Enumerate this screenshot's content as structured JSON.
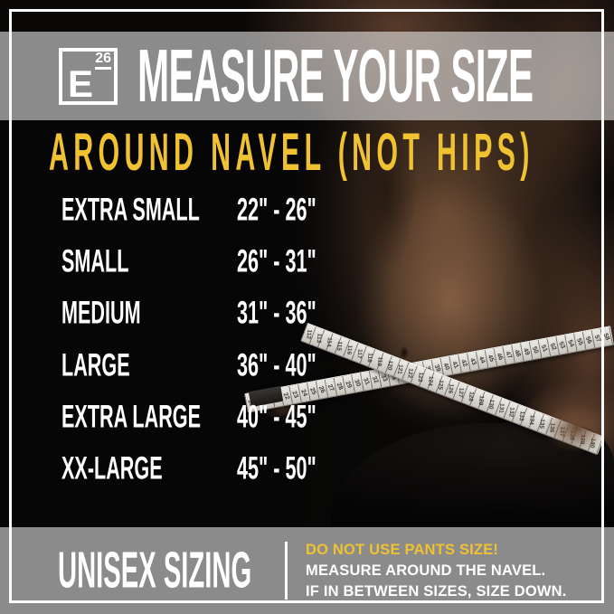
{
  "brand": {
    "logo_letter": "E",
    "logo_number": "26"
  },
  "header": {
    "title": "MEASURE YOUR SIZE"
  },
  "chart_data": {
    "type": "table",
    "title": "MEASURE YOUR SIZE",
    "subtitle": "AROUND NAVEL (NOT HIPS)",
    "rows": [
      {
        "size": "EXTRA SMALL",
        "range": "22\" - 26\""
      },
      {
        "size": "SMALL",
        "range": "26\" - 31\""
      },
      {
        "size": "MEDIUM",
        "range": "31\" - 36\""
      },
      {
        "size": "LARGE",
        "range": "36\" - 40\""
      },
      {
        "size": "EXTRA LARGE",
        "range": "40\" - 45\""
      },
      {
        "size": "XX-LARGE",
        "range": "45\" - 50\""
      }
    ]
  },
  "footer": {
    "left_label": "UNISEX SIZING",
    "note_warning": "DO NOT USE PANTS SIZE!",
    "note_line2": "MEASURE AROUND THE NAVEL.",
    "note_line3": "IF IN BETWEEN SIZES, SIZE DOWN."
  },
  "colors": {
    "accent_yellow": "#F0C231",
    "band_gray": "#8B8B8B",
    "text_white": "#FFFFFF",
    "background_black": "#090807",
    "tape_light": "#D9D6D0"
  },
  "background": {
    "alt": "dark photo of a bare torso with two measuring tapes crossed around the navel, black shorts below",
    "tape_a_numbers": [
      "18",
      "19",
      "20",
      "21",
      "22",
      "23",
      "24",
      "25",
      "26",
      "27",
      "28",
      "29",
      "30",
      "31",
      "32",
      "33",
      "34",
      "35",
      "36",
      "37",
      "38",
      "39",
      "40",
      "41",
      "42",
      "43",
      "44",
      "45",
      "46",
      "47",
      "48",
      "49",
      "50",
      "51",
      "52",
      "53",
      "54",
      "55",
      "56",
      "57",
      "58"
    ],
    "tape_b_numbers": [
      "112",
      "113",
      "114",
      "115",
      "116",
      "117",
      "118",
      "119",
      "120",
      "121",
      "122",
      "123",
      "124",
      "125",
      "126",
      "127",
      "128",
      "129",
      "130",
      "131",
      "132",
      "133",
      "134",
      "135",
      "136",
      "137",
      "138",
      "139",
      "140"
    ]
  }
}
